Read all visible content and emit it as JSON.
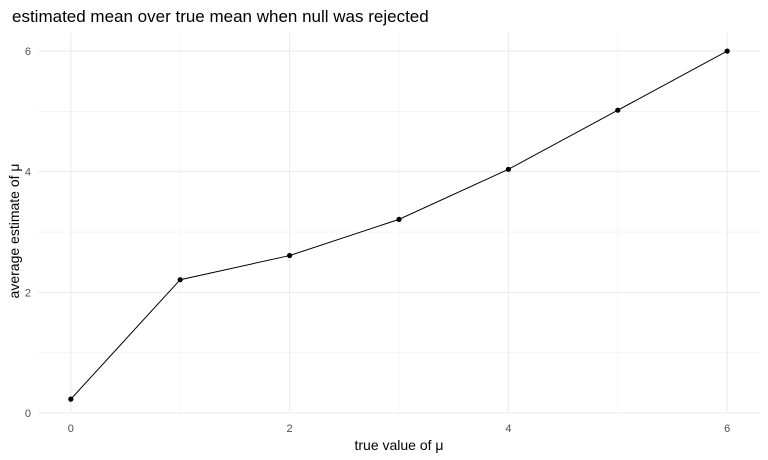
{
  "chart_data": {
    "type": "line",
    "title": "estimated mean over true mean when null was rejected",
    "xlabel": "true value of μ",
    "ylabel": "average estimate of μ",
    "x": [
      0,
      1,
      2,
      3,
      4,
      5,
      6
    ],
    "series": [
      {
        "values": [
          0.23,
          2.21,
          2.61,
          3.21,
          4.04,
          5.02,
          6.0
        ]
      }
    ],
    "xlim": [
      -0.3,
      6.3
    ],
    "ylim": [
      0,
      6.3
    ],
    "xticks": [
      "0",
      "2",
      "4",
      "6"
    ],
    "yticks": [
      "0",
      "2",
      "4",
      "6"
    ],
    "grid": true,
    "line_color": "#000000",
    "point_color": "#000000"
  }
}
